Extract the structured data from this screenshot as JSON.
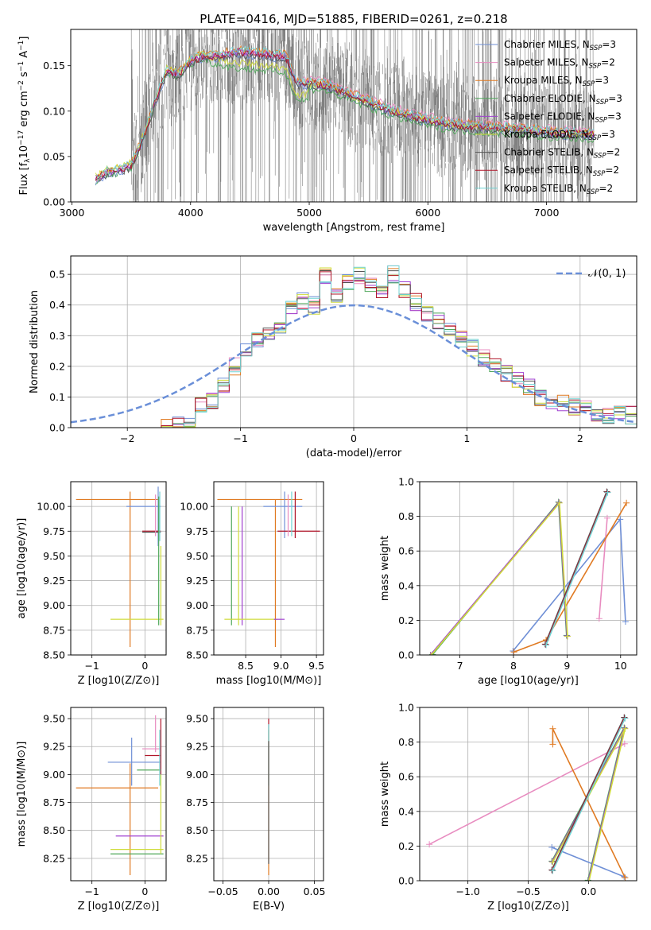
{
  "figure": {
    "title": "PLATE=0416, MJD=51885, FIBERID=0261, z=0.218"
  },
  "colors": {
    "Chabrier MILES": "#6f8fd6",
    "Salpeter MILES": "#e88cc0",
    "Kroupa MILES": "#e07a22",
    "Chabrier ELODIE": "#4fa85a",
    "Salpeter ELODIE": "#a040d0",
    "Kroupa ELODIE": "#cfdc3a",
    "Chabrier STELIB": "#555555",
    "Salpeter STELIB": "#b0162a",
    "Kroupa STELIB": "#6fd3d3",
    "data": "#808080",
    "normal": "#6a8fd8"
  },
  "chart_data": [
    {
      "type": "line",
      "panel": "spectrum",
      "xlabel": "wavelength [Angstrom, rest frame]",
      "ylabel": "Flux [f_λ 10^-17 erg cm^-2 s^-1 A^-1]",
      "xlim": [
        2990,
        7760
      ],
      "ylim": [
        0,
        0.19
      ],
      "xticks": [
        3000,
        4000,
        5000,
        6000,
        7000
      ],
      "yticks": [
        0.0,
        0.05,
        0.1,
        0.15
      ],
      "grid": false,
      "legend_position": "top-right",
      "legend": [
        {
          "label": "Chabrier MILES, N",
          "sub": "SSP",
          "suffix": "=3"
        },
        {
          "label": "Salpeter MILES, N",
          "sub": "SSP",
          "suffix": "=2"
        },
        {
          "label": "Kroupa MILES, N",
          "sub": "SSP",
          "suffix": "=3"
        },
        {
          "label": "Chabrier ELODIE, N",
          "sub": "SSP",
          "suffix": "=3"
        },
        {
          "label": "Salpeter ELODIE, N",
          "sub": "SSP",
          "suffix": "=3"
        },
        {
          "label": "Kroupa ELODIE, N",
          "sub": "SSP",
          "suffix": "=3"
        },
        {
          "label": "Chabrier STELIB, N",
          "sub": "SSP",
          "suffix": "=2"
        },
        {
          "label": "Salpeter STELIB, N",
          "sub": "SSP",
          "suffix": "=2"
        },
        {
          "label": "Kroupa STELIB, N",
          "sub": "SSP",
          "suffix": "=2"
        }
      ],
      "model_curve": {
        "x": [
          3200,
          3300,
          3400,
          3500,
          3600,
          3700,
          3800,
          3900,
          4000,
          4100,
          4200,
          4400,
          4600,
          4800,
          4900,
          5100,
          5300,
          5500,
          5700,
          6000,
          6200,
          6500,
          6800,
          7100,
          7400
        ],
        "y": [
          0.025,
          0.033,
          0.035,
          0.04,
          0.07,
          0.11,
          0.145,
          0.14,
          0.155,
          0.16,
          0.16,
          0.165,
          0.163,
          0.16,
          0.13,
          0.13,
          0.12,
          0.11,
          0.1,
          0.09,
          0.085,
          0.082,
          0.08,
          0.075,
          0.075
        ]
      },
      "data_range": [
        3500,
        7400
      ]
    },
    {
      "type": "line",
      "panel": "residual-histogram",
      "xlabel": "(data-model)/error",
      "ylabel": "Normed distribution",
      "xlim": [
        -2.5,
        2.5
      ],
      "ylim": [
        0,
        0.56
      ],
      "xticks": [
        -2,
        -1,
        0,
        1,
        2
      ],
      "yticks": [
        0.0,
        0.1,
        0.2,
        0.3,
        0.4,
        0.5
      ],
      "grid": true,
      "legend_position": "top-right",
      "legend_label": "𝒩(0, 1)",
      "hist_bins": [
        -1.8,
        -1.7,
        -1.6,
        -1.5,
        -1.4,
        -1.3,
        -1.2,
        -1.1,
        -1.0,
        -0.9,
        -0.8,
        -0.7,
        -0.6,
        -0.5,
        -0.4,
        -0.3,
        -0.2,
        -0.1,
        0.0,
        0.1,
        0.2,
        0.3,
        0.4,
        0.5,
        0.6,
        0.7,
        0.8,
        0.9,
        1.0,
        1.1,
        1.2,
        1.3,
        1.4,
        1.5,
        1.6,
        1.7,
        1.8,
        1.9,
        2.0,
        2.1,
        2.2,
        2.3,
        2.4,
        2.5
      ],
      "hist_values": [
        0.0,
        0.0,
        0.01,
        0.01,
        0.08,
        0.09,
        0.14,
        0.2,
        0.25,
        0.28,
        0.3,
        0.33,
        0.4,
        0.41,
        0.4,
        0.5,
        0.43,
        0.47,
        0.5,
        0.46,
        0.44,
        0.5,
        0.45,
        0.41,
        0.37,
        0.35,
        0.31,
        0.29,
        0.26,
        0.23,
        0.2,
        0.18,
        0.16,
        0.13,
        0.1,
        0.09,
        0.08,
        0.07,
        0.06,
        0.05,
        0.04,
        0.04,
        0.04
      ]
    },
    {
      "type": "scatter",
      "panel": "age-vs-Z",
      "xlabel": "Z [log10(Z/Z⊙)]",
      "ylabel": "age [log10(age/yr)]",
      "xlim": [
        -1.4,
        0.4
      ],
      "ylim": [
        8.5,
        10.25
      ],
      "xticks": [
        -1,
        0
      ],
      "yticks": [
        8.5,
        8.75,
        9.0,
        9.25,
        9.5,
        9.75,
        10.0
      ],
      "grid": true
    },
    {
      "type": "scatter",
      "panel": "age-vs-mass",
      "xlabel": "mass [log10(M/M⊙)]",
      "ylabel": "",
      "xlim": [
        8.05,
        9.6
      ],
      "ylim": [
        8.5,
        10.25
      ],
      "xticks": [
        8.5,
        9.0,
        9.5
      ],
      "yticks": [
        8.5,
        8.75,
        9.0,
        9.25,
        9.5,
        9.75,
        10.0
      ],
      "grid": true
    },
    {
      "type": "line",
      "panel": "massweight-vs-age",
      "xlabel": "age [log10(age/yr)]",
      "ylabel": "mass weight",
      "xlim": [
        6.25,
        10.3
      ],
      "ylim": [
        0,
        1.0
      ],
      "xticks": [
        7,
        8,
        9,
        10
      ],
      "yticks": [
        0.0,
        0.2,
        0.4,
        0.6,
        0.8,
        1.0
      ],
      "grid": true,
      "series": [
        {
          "key": "Chabrier MILES",
          "x": [
            8.0,
            10.0,
            10.1
          ],
          "y": [
            0.02,
            0.78,
            0.19
          ]
        },
        {
          "key": "Salpeter MILES",
          "x": [
            9.6,
            9.75
          ],
          "y": [
            0.21,
            0.79
          ]
        },
        {
          "key": "Kroupa MILES",
          "x": [
            8.0,
            8.6,
            10.1
          ],
          "y": [
            0.02,
            0.09,
            0.88
          ]
        },
        {
          "key": "Chabrier ELODIE",
          "x": [
            6.5,
            8.85,
            9.0
          ],
          "y": [
            0.0,
            0.88,
            0.11
          ]
        },
        {
          "key": "Salpeter ELODIE",
          "x": [
            6.45,
            8.85,
            9.0
          ],
          "y": [
            0.0,
            0.88,
            0.11
          ]
        },
        {
          "key": "Kroupa ELODIE",
          "x": [
            6.45,
            8.85,
            9.0
          ],
          "y": [
            0.0,
            0.88,
            0.11
          ]
        },
        {
          "key": "Chabrier STELIB",
          "x": [
            8.6,
            9.75
          ],
          "y": [
            0.06,
            0.94
          ]
        },
        {
          "key": "Salpeter STELIB",
          "x": [
            8.6,
            9.75
          ],
          "y": [
            0.06,
            0.94
          ]
        },
        {
          "key": "Kroupa STELIB",
          "x": [
            8.6,
            9.75
          ],
          "y": [
            0.06,
            0.94
          ]
        }
      ]
    },
    {
      "type": "scatter",
      "panel": "mass-vs-Z",
      "xlabel": "Z [log10(Z/Z⊙)]",
      "ylabel": "mass [log10(M/M⊙)]",
      "xlim": [
        -1.4,
        0.4
      ],
      "ylim": [
        8.05,
        9.6
      ],
      "xticks": [
        -1,
        0
      ],
      "yticks": [
        8.25,
        8.5,
        8.75,
        9.0,
        9.25,
        9.5
      ],
      "grid": true
    },
    {
      "type": "scatter",
      "panel": "mass-vs-ebv",
      "xlabel": "E(B-V)",
      "ylabel": "",
      "xlim": [
        -0.06,
        0.06
      ],
      "ylim": [
        8.05,
        9.6
      ],
      "xticks": [
        -0.05,
        0.0,
        0.05
      ],
      "yticks": [
        8.25,
        8.5,
        8.75,
        9.0,
        9.25,
        9.5
      ],
      "grid": true
    },
    {
      "type": "line",
      "panel": "massweight-vs-Z",
      "xlabel": "Z [log10(Z/Z⊙)]",
      "ylabel": "mass weight",
      "xlim": [
        -1.4,
        0.4
      ],
      "ylim": [
        0,
        1.0
      ],
      "xticks": [
        -1.0,
        -0.5,
        0.0
      ],
      "yticks": [
        0.0,
        0.2,
        0.4,
        0.6,
        0.8,
        1.0
      ],
      "grid": true,
      "series": [
        {
          "key": "Chabrier MILES",
          "x": [
            -0.3,
            0.3
          ],
          "y": [
            0.19,
            0.02
          ]
        },
        {
          "key": "Salpeter MILES",
          "x": [
            -1.32,
            0.3
          ],
          "y": [
            0.21,
            0.79
          ]
        },
        {
          "key": "Kroupa MILES",
          "x": [
            -0.3,
            -0.3,
            0.3
          ],
          "y": [
            0.79,
            0.88,
            0.02
          ]
        },
        {
          "key": "Chabrier ELODIE",
          "x": [
            -0.3,
            0.3,
            0.0
          ],
          "y": [
            0.11,
            0.88,
            0.0
          ]
        },
        {
          "key": "Salpeter ELODIE",
          "x": [
            -0.3,
            0.3,
            0.0
          ],
          "y": [
            0.11,
            0.88,
            0.0
          ]
        },
        {
          "key": "Kroupa ELODIE",
          "x": [
            -0.3,
            0.3,
            0.0
          ],
          "y": [
            0.11,
            0.88,
            0.0
          ]
        },
        {
          "key": "Chabrier STELIB",
          "x": [
            -0.3,
            0.3
          ],
          "y": [
            0.06,
            0.94
          ]
        },
        {
          "key": "Salpeter STELIB",
          "x": [
            -0.3,
            0.3
          ],
          "y": [
            0.06,
            0.94
          ]
        },
        {
          "key": "Kroupa STELIB",
          "x": [
            -0.3,
            0.3
          ],
          "y": [
            0.06,
            0.94
          ]
        }
      ]
    }
  ]
}
